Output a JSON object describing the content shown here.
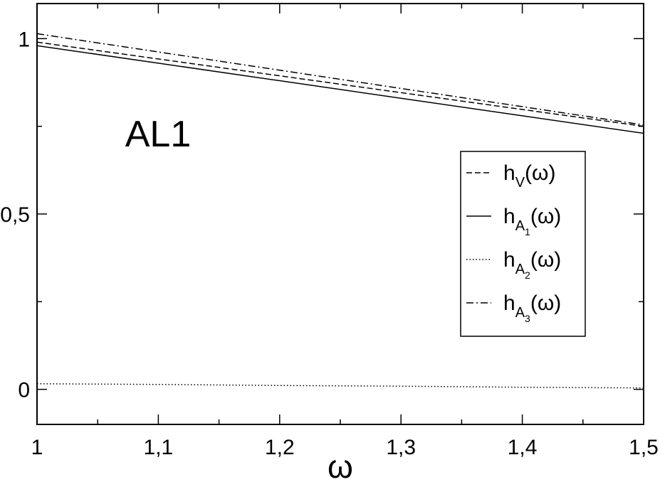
{
  "chart_data": {
    "type": "line",
    "annotation": "AL1",
    "x_label": "ω",
    "x": [
      1,
      1.1,
      1.2,
      1.3,
      1.4,
      1.5
    ],
    "series": [
      {
        "name": "hV(ω)",
        "color": "#000000",
        "dash": "dashed",
        "values": [
          0.99,
          0.942,
          0.894,
          0.846,
          0.798,
          0.75
        ]
      },
      {
        "name": "hA1(ω)",
        "color": "#000000",
        "dash": "solid",
        "values": [
          0.98,
          0.93,
          0.88,
          0.83,
          0.78,
          0.73
        ]
      },
      {
        "name": "hA2(ω)",
        "color": "#000000",
        "dash": "dotted",
        "values": [
          0.016,
          0.014,
          0.011,
          0.009,
          0.006,
          0.004
        ]
      },
      {
        "name": "hA3(ω)",
        "color": "#000000",
        "dash": "dashdot",
        "values": [
          1.014,
          0.962,
          0.91,
          0.858,
          0.806,
          0.754
        ]
      }
    ],
    "xlim": [
      1,
      1.5
    ],
    "ylim": [
      -0.1,
      1.1
    ],
    "xticks": [
      1,
      {
        "value": 1.1,
        "label": "1,1"
      },
      {
        "value": 1.2,
        "label": "1,2"
      },
      {
        "value": 1.3,
        "label": "1,3"
      },
      {
        "value": 1.4,
        "label": "1,4"
      },
      {
        "value": 1.5,
        "label": "1,5"
      }
    ],
    "yticks": [
      0,
      {
        "value": 0.5,
        "label": "0,5"
      },
      1
    ],
    "xminorticks": [
      1.05,
      1.15,
      1.25,
      1.35,
      1.45
    ],
    "yminorticks": [
      0.25,
      0.75
    ],
    "legend": "upper right",
    "grid": false
  }
}
